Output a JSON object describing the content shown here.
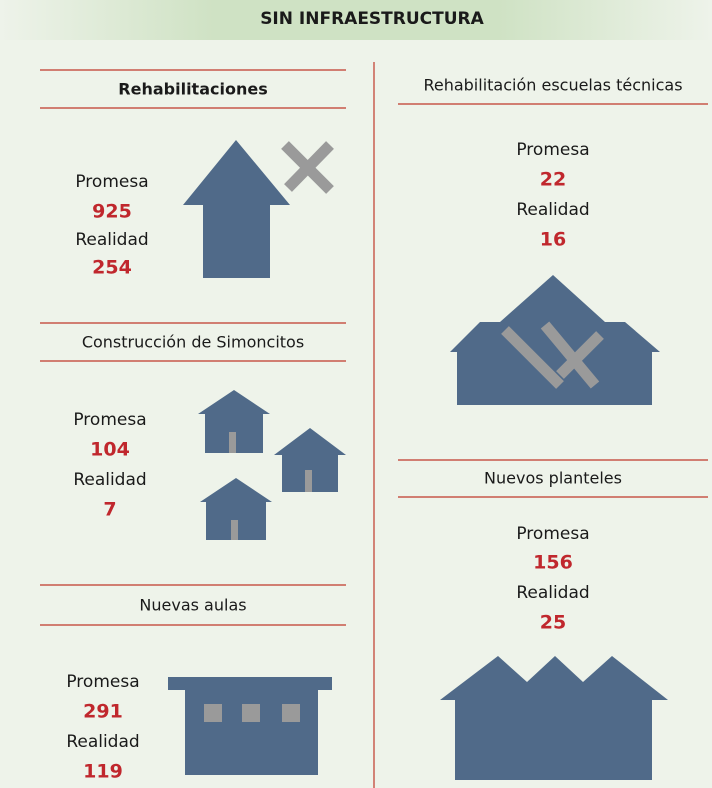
{
  "header": {
    "title": "SIN INFRAESTRUCTURA"
  },
  "sections": [
    {
      "title": "Rehabilitaciones",
      "promise_label": "Promesa",
      "promise": 925,
      "reality_label": "Realidad",
      "reality": 254
    },
    {
      "title": "Construcción de Simoncitos",
      "promise_label": "Promesa",
      "promise": 104,
      "reality_label": "Realidad",
      "reality": 7
    },
    {
      "title": "Nuevas aulas",
      "promise_label": "Promesa",
      "promise": 291,
      "reality_label": "Realidad",
      "reality": 119
    },
    {
      "title": "Rehabilitación escuelas técnicas",
      "promise_label": "Promesa",
      "promise": 22,
      "reality_label": "Realidad",
      "reality": 16
    },
    {
      "title": "Nuevos planteles",
      "promise_label": "Promesa",
      "promise": 156,
      "reality_label": "Realidad",
      "reality": 25
    }
  ]
}
